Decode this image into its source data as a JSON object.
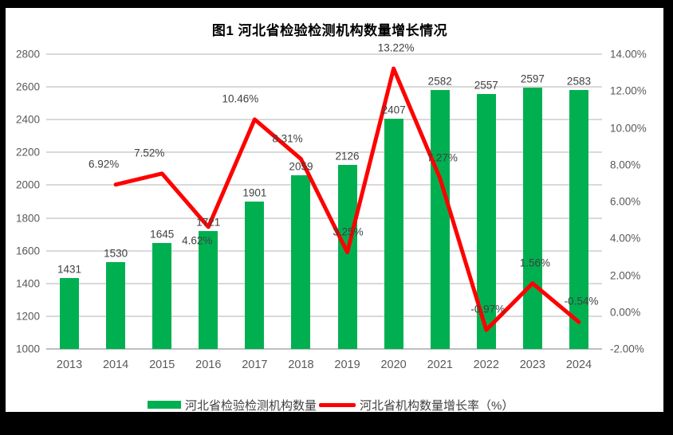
{
  "chart_data": {
    "type": "combo-bar-line",
    "title": "图1  河北省检验检测机构数量增长情况",
    "categories": [
      "2013",
      "2014",
      "2015",
      "2016",
      "2017",
      "2018",
      "2019",
      "2020",
      "2021",
      "2022",
      "2023",
      "2024"
    ],
    "series": [
      {
        "name": "河北省检验检测机构数量",
        "type": "bar",
        "axis": "left",
        "color": "#00B050",
        "values": [
          1431,
          1530,
          1645,
          1721,
          1901,
          2059,
          2126,
          2407,
          2582,
          2557,
          2597,
          2583
        ],
        "value_labels": [
          "1431",
          "1530",
          "1645",
          "1721",
          "1901",
          "2059",
          "2126",
          "2407",
          "2582",
          "2557",
          "2597",
          "2583"
        ]
      },
      {
        "name": "河北省机构数量增长率（%）",
        "type": "line",
        "axis": "right",
        "color": "#FF0000",
        "values": [
          null,
          6.92,
          7.52,
          4.62,
          10.46,
          8.31,
          3.25,
          13.22,
          7.27,
          -0.97,
          1.56,
          -0.54
        ],
        "value_labels": [
          null,
          "6.92%",
          "7.52%",
          "4.62%",
          "10.46%",
          "8.31%",
          "3.25%",
          "13.22%",
          "7.27%",
          "-0.97%",
          "1.56%",
          "-0.54%"
        ]
      }
    ],
    "left_axis": {
      "min": 1000,
      "max": 2800,
      "step": 200,
      "ticks": [
        "2800",
        "2600",
        "2400",
        "2200",
        "2000",
        "1800",
        "1600",
        "1400",
        "1200",
        "1000"
      ]
    },
    "right_axis": {
      "min": -2,
      "max": 14,
      "step": 2,
      "ticks": [
        "14.00%",
        "12.00%",
        "10.00%",
        "8.00%",
        "6.00%",
        "4.00%",
        "2.00%",
        "0.00%",
        "-2.00%"
      ]
    },
    "grid": true,
    "legend_position": "bottom",
    "colors": {
      "bar": "#00B050",
      "line": "#FF0000",
      "gridline": "#D9D9D9",
      "axis_line": "#BFBFBF",
      "axis_text": "#595959",
      "label_text": "#404040",
      "frame": "#000000",
      "background": "#FFFFFF"
    },
    "rate_label_placement": [
      null,
      "above",
      "above",
      "below",
      "above",
      "above",
      "above",
      "above",
      "above",
      "above",
      "above",
      "above"
    ],
    "rate_label_dx": [
      0,
      -15,
      -16,
      -14,
      -18,
      -17,
      1,
      3,
      3,
      2,
      3,
      3
    ]
  }
}
